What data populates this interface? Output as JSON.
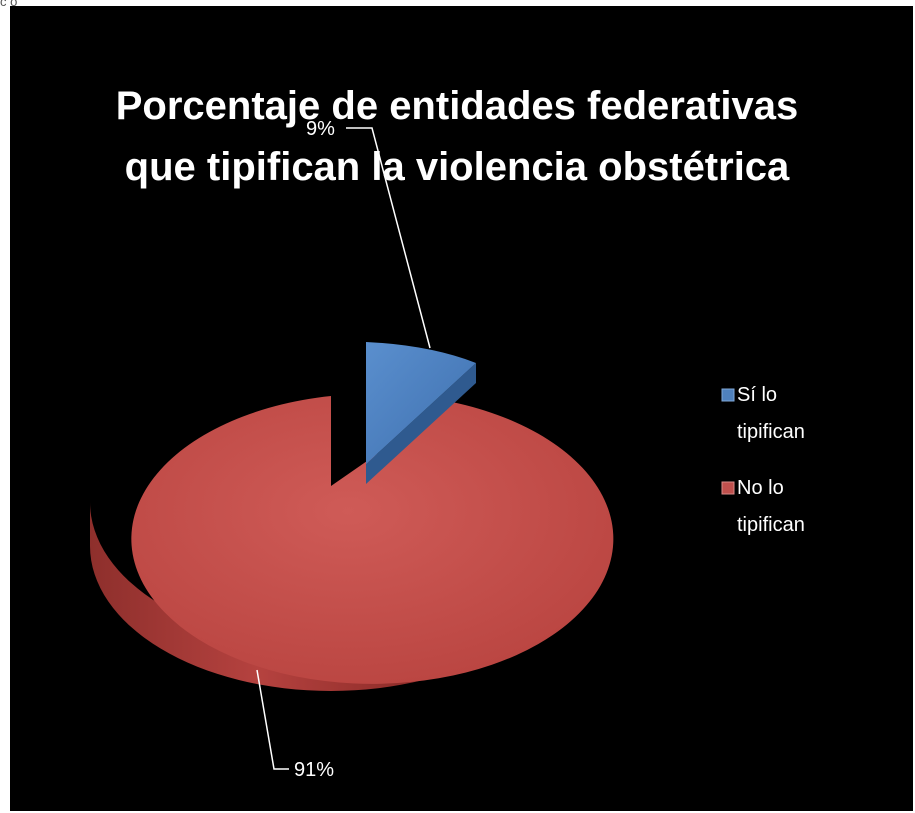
{
  "corner_mark": "c  o",
  "chart_data": {
    "type": "pie",
    "title_lines": [
      "Porcentaje de entidades federativas",
      "que tipifican  la violencia obstétrica"
    ],
    "slices": [
      {
        "name": "Sí lo tipifican",
        "legend_lines": [
          "Sí lo",
          "tipifican"
        ],
        "value": 9,
        "label": "9%",
        "color": "#4f81bd"
      },
      {
        "name": "No lo tipifican",
        "legend_lines": [
          "No lo",
          "tipifican"
        ],
        "value": 91,
        "label": "91%",
        "color": "#c0504d"
      }
    ],
    "legend_position": "right",
    "style": "3d-exploded"
  }
}
